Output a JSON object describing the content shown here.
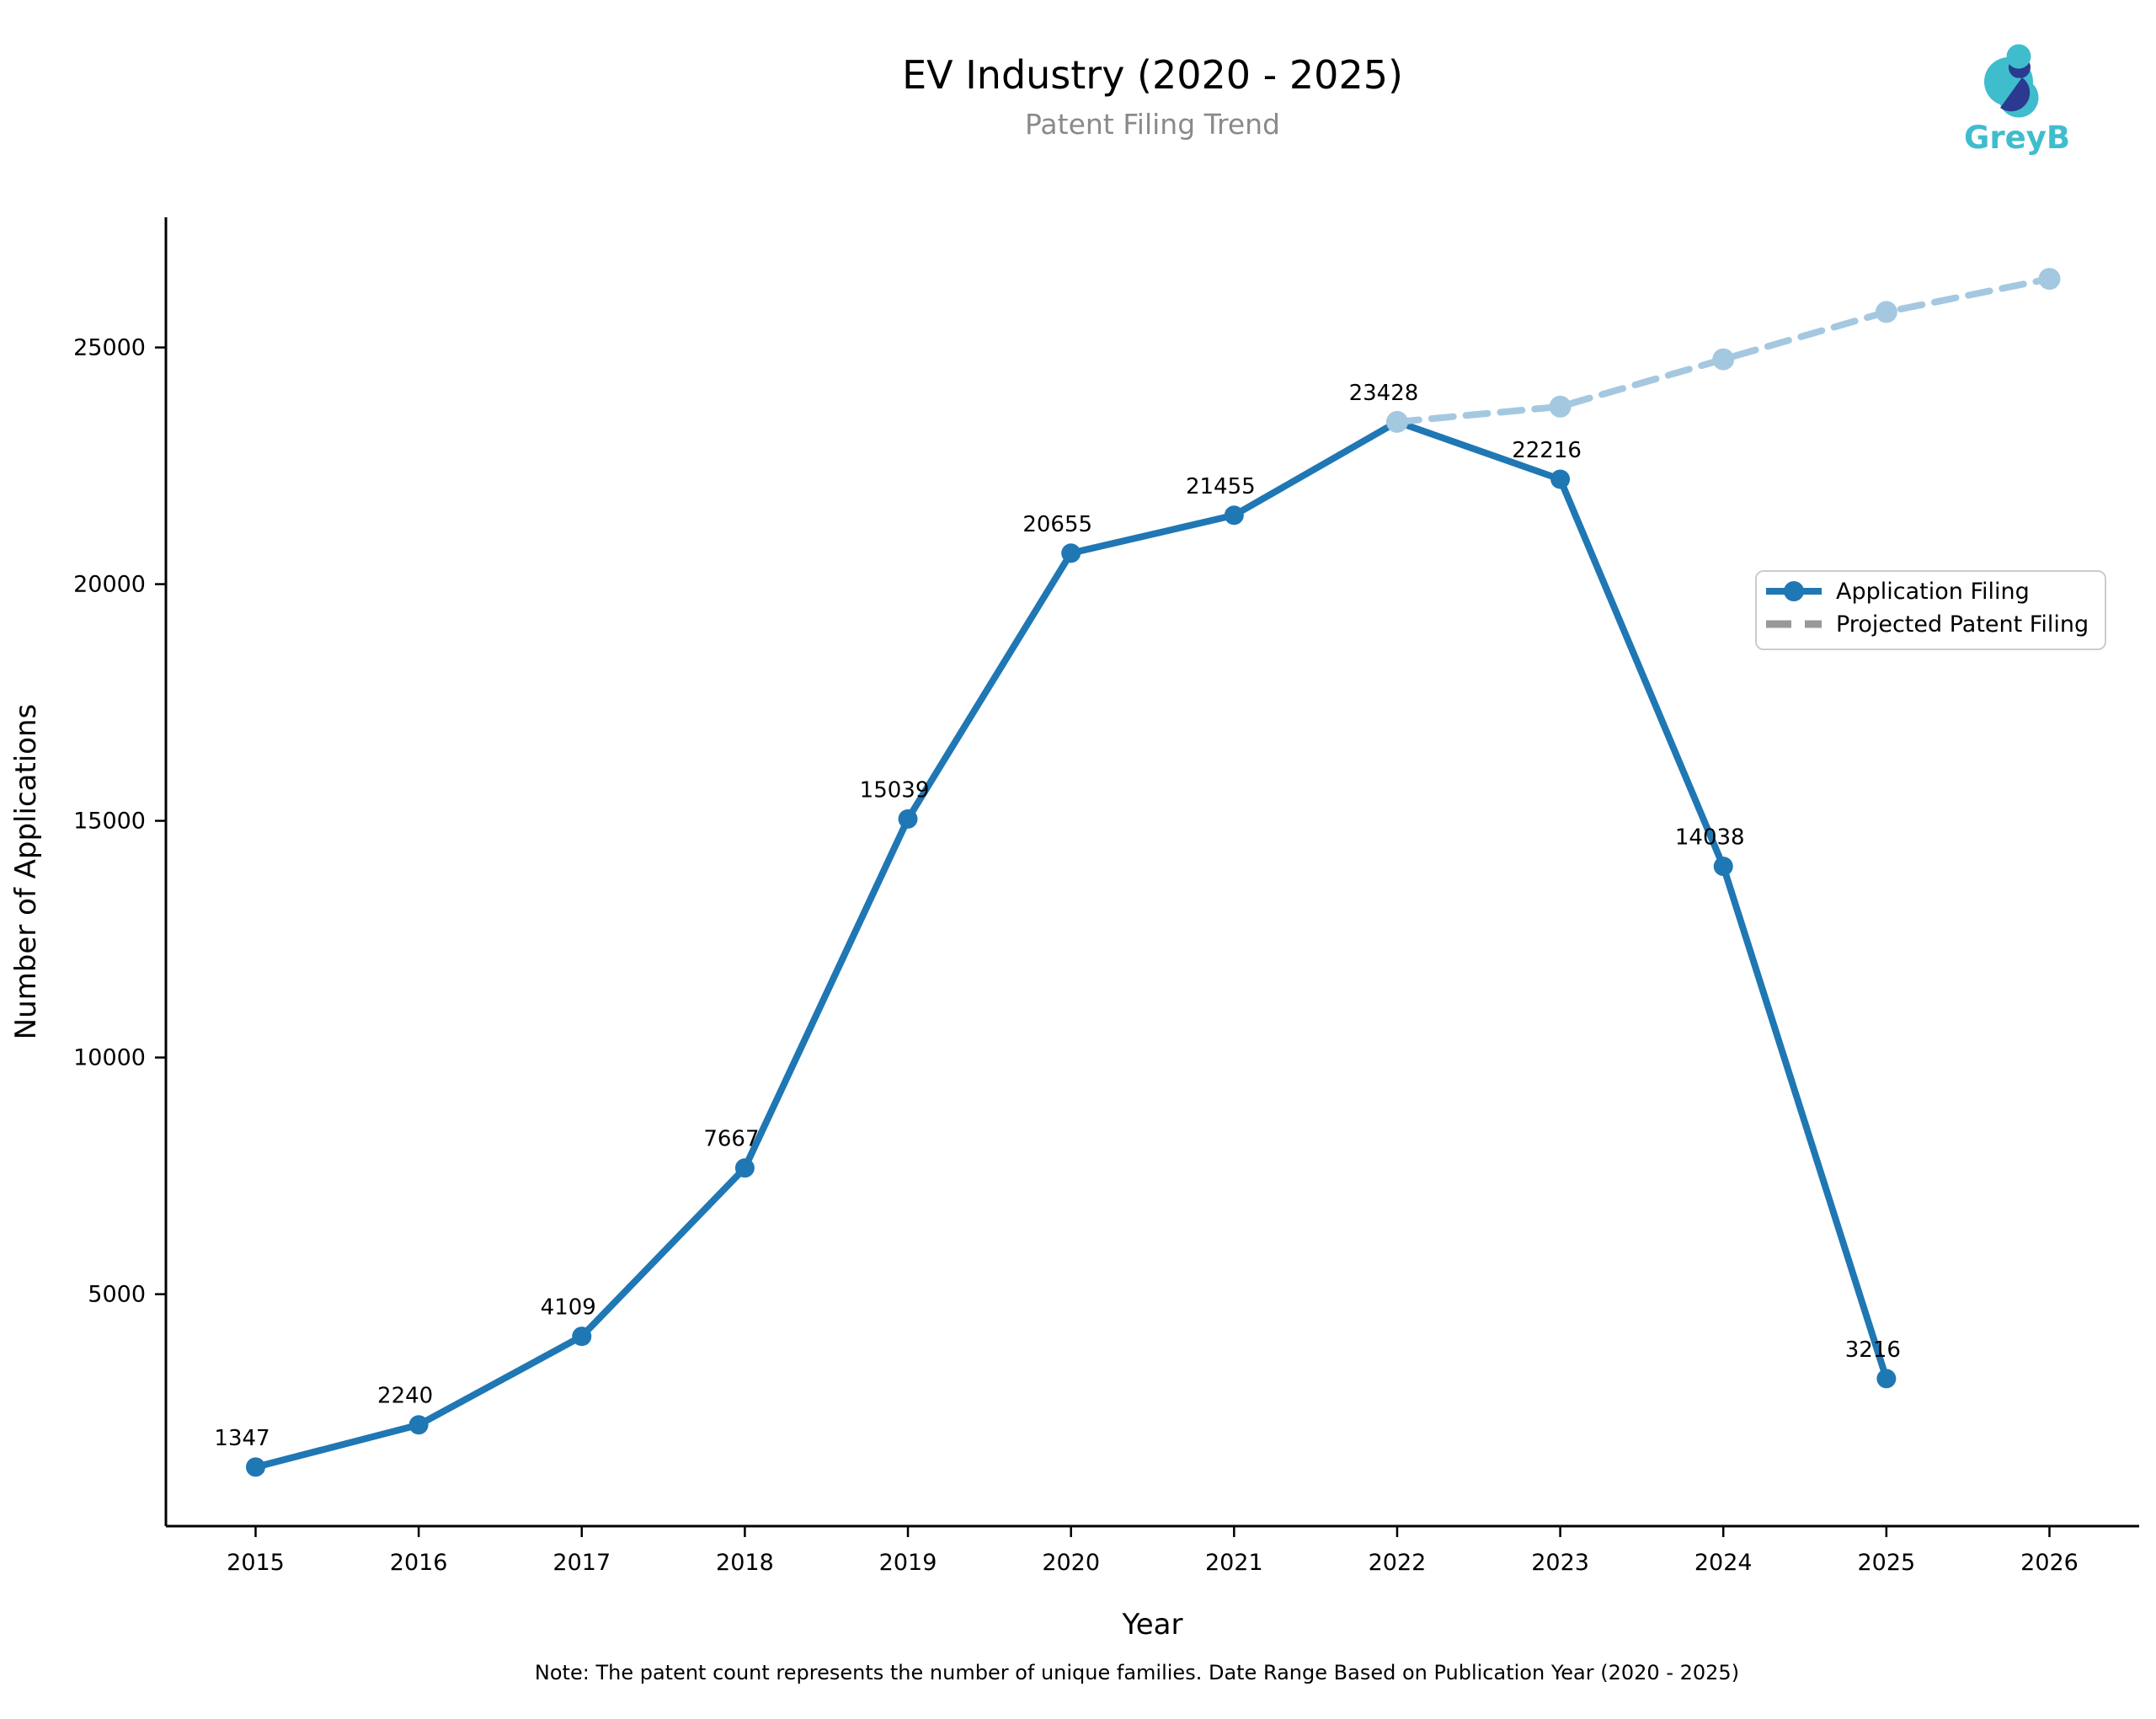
{
  "page": {
    "title": "EV Industry (2020 - 2025)",
    "subtitle": "Patent Filing Trend",
    "note": "Note: The patent count represents the number of unique families. Date Range Based on Publication Year (2020 - 2025)",
    "logo_text": "GreyB"
  },
  "colors": {
    "application_line": "#1f77b4",
    "projected_line": "#a5c8e1",
    "legend_projected_swatch": "#999999",
    "subtitle_gray": "#8a8a8a",
    "axis_black": "#000000",
    "legend_border": "#cccccc",
    "logo_teal": "#3fbdcd",
    "logo_navy": "#2b3990"
  },
  "chart_data": {
    "type": "line",
    "title": "EV Industry (2020 - 2025)",
    "subtitle": "Patent Filing Trend",
    "xlabel": "Year",
    "ylabel": "Number of Applications",
    "x_ticks": [
      2015,
      2016,
      2017,
      2018,
      2019,
      2020,
      2021,
      2022,
      2023,
      2024,
      2025,
      2026
    ],
    "y_ticks": [
      5000,
      10000,
      15000,
      20000,
      25000
    ],
    "ylim": [
      100,
      27750
    ],
    "xlim": [
      2014.45,
      2026.55
    ],
    "grid": false,
    "legend_position": "center-right",
    "series": [
      {
        "name": "Application Filing",
        "style": "solid",
        "color": "#1f77b4",
        "x": [
          2015,
          2016,
          2017,
          2018,
          2019,
          2020,
          2021,
          2022,
          2023,
          2024,
          2025
        ],
        "values": [
          1347,
          2240,
          4109,
          7667,
          15039,
          20655,
          21455,
          23428,
          22216,
          14038,
          3216
        ],
        "point_labels": [
          "1347",
          "2240",
          "4109",
          "7667",
          "15039",
          "20655",
          "21455",
          "23428",
          "22216",
          "14038",
          "3216"
        ],
        "labeled": true
      },
      {
        "name": "Projected Patent Filing",
        "style": "dashed",
        "color": "#a5c8e1",
        "legend_swatch_color": "#999999",
        "x": [
          2022,
          2023,
          2024,
          2025,
          2026
        ],
        "values": [
          23428,
          23750,
          24750,
          25750,
          26450
        ],
        "labeled": false,
        "values_estimated_from_plot": true
      }
    ]
  },
  "legend": {
    "items": [
      {
        "label": "Application Filing"
      },
      {
        "label": "Projected Patent Filing"
      }
    ]
  }
}
